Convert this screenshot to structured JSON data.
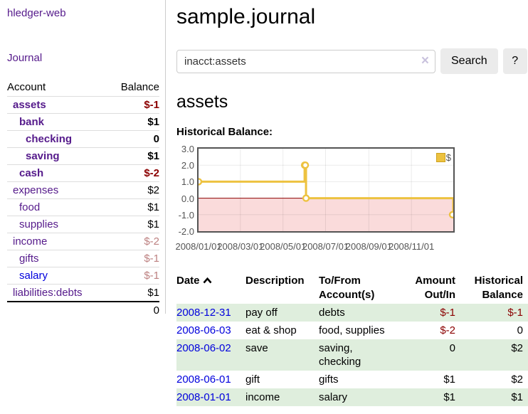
{
  "sidebar": {
    "brand": "hledger-web",
    "journal_link": "Journal",
    "accounts_header": {
      "account": "Account",
      "balance": "Balance"
    },
    "accounts": [
      {
        "name": "assets",
        "depth": 0,
        "in_query": true,
        "balance": "$-1",
        "negative": true,
        "link_color": "purple"
      },
      {
        "name": "bank",
        "depth": 1,
        "in_query": true,
        "balance": "$1",
        "negative": false,
        "link_color": "purple"
      },
      {
        "name": "checking",
        "depth": 2,
        "in_query": true,
        "balance": "0",
        "negative": false,
        "link_color": "purple"
      },
      {
        "name": "saving",
        "depth": 2,
        "in_query": true,
        "balance": "$1",
        "negative": false,
        "link_color": "purple"
      },
      {
        "name": "cash",
        "depth": 1,
        "in_query": true,
        "balance": "$-2",
        "negative": true,
        "link_color": "purple"
      },
      {
        "name": "expenses",
        "depth": 0,
        "in_query": false,
        "balance": "$2",
        "negative": false,
        "link_color": "purple"
      },
      {
        "name": "food",
        "depth": 1,
        "in_query": false,
        "balance": "$1",
        "negative": false,
        "link_color": "purple"
      },
      {
        "name": "supplies",
        "depth": 1,
        "in_query": false,
        "balance": "$1",
        "negative": false,
        "link_color": "purple"
      },
      {
        "name": "income",
        "depth": 0,
        "in_query": false,
        "balance": "$-2",
        "negative": true,
        "link_color": "purple"
      },
      {
        "name": "gifts",
        "depth": 1,
        "in_query": false,
        "balance": "$-1",
        "negative": true,
        "link_color": "purple"
      },
      {
        "name": "salary",
        "depth": 1,
        "in_query": false,
        "balance": "$-1",
        "negative": true,
        "link_color": "blue"
      },
      {
        "name": "liabilities:debts",
        "depth": 0,
        "in_query": false,
        "balance": "$1",
        "negative": false,
        "link_color": "purple"
      }
    ],
    "total": "0"
  },
  "main": {
    "title": "sample.journal",
    "search": {
      "query": "inacct:assets",
      "clear_icon": "×",
      "button_label": "Search",
      "help_label": "?"
    },
    "account_heading": "assets"
  },
  "chart_data": {
    "type": "line",
    "line_style": "step-after",
    "title": "Historical Balance:",
    "series": [
      {
        "name": "$",
        "color": "#edc240",
        "points": [
          [
            "2008-01-01",
            1
          ],
          [
            "2008-06-01",
            2
          ],
          [
            "2008-06-02",
            2
          ],
          [
            "2008-06-03",
            0
          ],
          [
            "2008-12-31",
            -1
          ]
        ]
      }
    ],
    "xlim": [
      "2008-01-01",
      "2008-12-31"
    ],
    "ylim": [
      -2,
      3
    ],
    "yticks": [
      3,
      2,
      1,
      0,
      -1,
      -2
    ],
    "ytick_labels": [
      "3.0",
      "2.0",
      "1.0",
      "0.0",
      "-1.0",
      "-2.0"
    ],
    "xticks": [
      "2008-01-01",
      "2008-03-01",
      "2008-05-01",
      "2008-07-01",
      "2008-09-01",
      "2008-11-01"
    ],
    "xtick_labels": [
      "2008/01/01",
      "2008/03/01",
      "2008/05/01",
      "2008/07/01",
      "2008/09/01",
      "2008/11/01"
    ],
    "legend": {
      "position": "top-right",
      "label": "$"
    },
    "grid": true,
    "grid_color": "rgba(0,0,0,0.08)",
    "zero_line_color": "#8b0000",
    "negative_region_color": "#fadbdb",
    "axis_text_color": "#545454",
    "border_color": "#545454"
  },
  "transactions": {
    "headers": {
      "date": "Date",
      "description": "Description",
      "accounts": "To/From\nAccount(s)",
      "amount": "Amount\nOut/In",
      "balance": "Historical\nBalance"
    },
    "sort": {
      "column": "date",
      "direction": "ascending"
    },
    "rows": [
      {
        "date": "2008-12-31",
        "description": "pay off",
        "accounts": "debts",
        "amount": "$-1",
        "amount_negative": true,
        "balance": "$-1",
        "balance_negative": true
      },
      {
        "date": "2008-06-03",
        "description": "eat & shop",
        "accounts": "food, supplies",
        "amount": "$-2",
        "amount_negative": true,
        "balance": "0",
        "balance_negative": false
      },
      {
        "date": "2008-06-02",
        "description": "save",
        "accounts": "saving,\nchecking",
        "amount": "0",
        "amount_negative": false,
        "balance": "$2",
        "balance_negative": false
      },
      {
        "date": "2008-06-01",
        "description": "gift",
        "accounts": "gifts",
        "amount": "$1",
        "amount_negative": false,
        "balance": "$2",
        "balance_negative": false
      },
      {
        "date": "2008-01-01",
        "description": "income",
        "accounts": "salary",
        "amount": "$1",
        "amount_negative": false,
        "balance": "$1",
        "balance_negative": false
      }
    ]
  }
}
